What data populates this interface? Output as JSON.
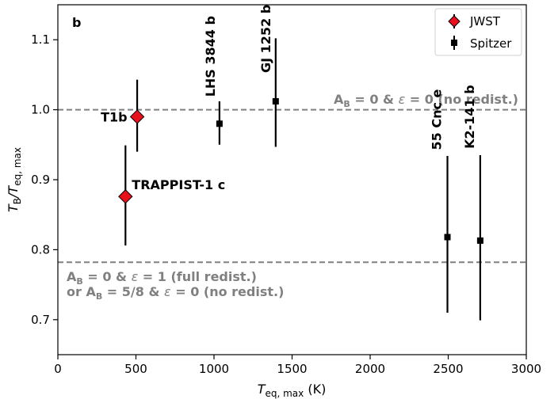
{
  "chart_data": {
    "type": "scatter",
    "panel_label": "b",
    "xlabel": {
      "main": "T",
      "sub": "eq, max",
      "unit": " (K)"
    },
    "ylabel": {
      "main": "T",
      "sub1": "B",
      "sep": "/T",
      "sub2": "eq, max"
    },
    "xlim": [
      0,
      3000
    ],
    "ylim": [
      0.65,
      1.15
    ],
    "xticks": [
      0,
      500,
      1000,
      1500,
      2000,
      2500,
      3000
    ],
    "xtick_labels": [
      "0",
      "500",
      "1000",
      "1500",
      "2000",
      "2500",
      "3000"
    ],
    "yticks": [
      0.7,
      0.8,
      0.9,
      1.0,
      1.1
    ],
    "ytick_labels": [
      "0.7",
      "0.8",
      "0.9",
      "1.0",
      "1.1"
    ],
    "grid": false,
    "legend_position": "top-right",
    "series": [
      {
        "name": "JWST",
        "marker": "diamond",
        "color": "#e8101a",
        "points": [
          {
            "label": "T1b",
            "x": 508,
            "y": 0.99,
            "err_low": 0.05,
            "err_high": 0.053
          },
          {
            "label": "TRAPPIST-1 c",
            "x": 433,
            "y": 0.876,
            "err_low": 0.07,
            "err_high": 0.073
          }
        ]
      },
      {
        "name": "Spitzer",
        "marker": "square",
        "color": "#000000",
        "points": [
          {
            "label": "LHS 3844 b",
            "x": 1035,
            "y": 0.98,
            "err_low": 0.03,
            "err_high": 0.032
          },
          {
            "label": "GJ 1252 b",
            "x": 1395,
            "y": 1.012,
            "err_low": 0.065,
            "err_high": 0.09
          },
          {
            "label": "55 Cnc e",
            "x": 2495,
            "y": 0.818,
            "err_low": 0.108,
            "err_high": 0.116
          },
          {
            "label": "K2-141 b",
            "x": 2705,
            "y": 0.813,
            "err_low": 0.114,
            "err_high": 0.122
          }
        ]
      }
    ],
    "reference_lines": [
      {
        "y": 1.0,
        "color": "#808080",
        "label": {
          "a": "A",
          "asub": "B",
          "b": " = 0 & ",
          "eps": "ε",
          "c": " = 0 (no redist.)"
        }
      },
      {
        "y": 0.782,
        "color": "#808080",
        "label": {
          "line1": {
            "a": "A",
            "asub": "B",
            "b": " = 0 & ",
            "eps": "ε",
            "c": " = 1 (full redist.)"
          },
          "line2": {
            "a": "or A",
            "asub": "B",
            "b": " = 5/8 & ",
            "eps": "ε",
            "c": " = 0 (no redist.)"
          }
        }
      }
    ]
  }
}
